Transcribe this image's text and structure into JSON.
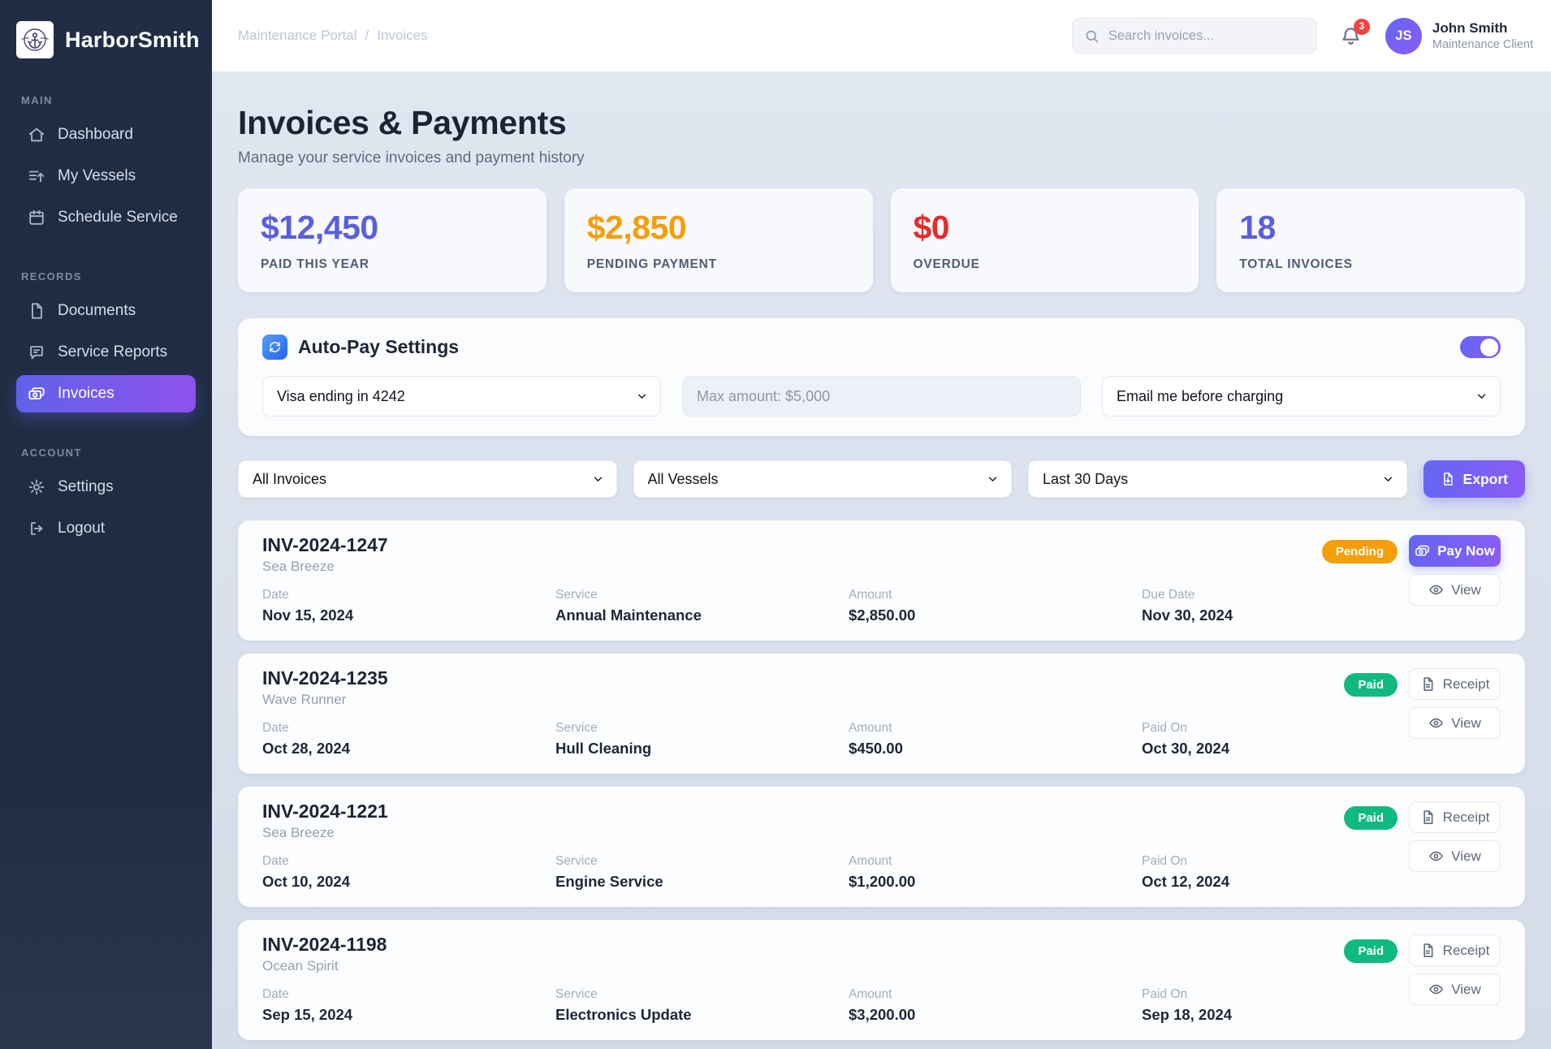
{
  "brand": {
    "name": "HarborSmith"
  },
  "sidebar": {
    "sections": [
      {
        "label": "MAIN",
        "items": [
          {
            "label": "Dashboard",
            "icon": "home"
          },
          {
            "label": "My Vessels",
            "icon": "vessels"
          },
          {
            "label": "Schedule Service",
            "icon": "calendar"
          }
        ]
      },
      {
        "label": "RECORDS",
        "items": [
          {
            "label": "Documents",
            "icon": "document"
          },
          {
            "label": "Service Reports",
            "icon": "report"
          },
          {
            "label": "Invoices",
            "icon": "banknote",
            "active": true
          }
        ]
      },
      {
        "label": "ACCOUNT",
        "items": [
          {
            "label": "Settings",
            "icon": "gear"
          },
          {
            "label": "Logout",
            "icon": "logout"
          }
        ]
      }
    ]
  },
  "header": {
    "breadcrumb": [
      "Maintenance Portal",
      "Invoices"
    ],
    "breadcrumb_separator": "/",
    "search_placeholder": "Search invoices...",
    "notifications_count": "3",
    "user": {
      "initials": "JS",
      "name": "John Smith",
      "role": "Maintenance Client"
    }
  },
  "page": {
    "title": "Invoices & Payments",
    "subtitle": "Manage your service invoices and payment history"
  },
  "stats": [
    {
      "value": "$12,450",
      "label": "PAID THIS YEAR",
      "color": "#5a5fdb"
    },
    {
      "value": "$2,850",
      "label": "PENDING PAYMENT",
      "color": "#f59e0b"
    },
    {
      "value": "$0",
      "label": "OVERDUE",
      "color": "#e32d2d"
    },
    {
      "value": "18",
      "label": "TOTAL INVOICES",
      "color": "#5a5fdb"
    }
  ],
  "autopay": {
    "title": "Auto-Pay Settings",
    "enabled": true,
    "payment_method": "Visa ending in 4242",
    "max_amount_placeholder": "Max amount: $5,000",
    "notify_option": "Email me before charging"
  },
  "filters": {
    "invoice_filter": "All Invoices",
    "vessel_filter": "All Vessels",
    "date_filter": "Last 30 Days",
    "export_label": "Export"
  },
  "invoices": [
    {
      "id": "INV-2024-1247",
      "vessel": "Sea Breeze",
      "status": "Pending",
      "status_color": "#f59e0b",
      "fields": [
        {
          "label": "Date",
          "value": "Nov 15, 2024"
        },
        {
          "label": "Service",
          "value": "Annual Maintenance"
        },
        {
          "label": "Amount",
          "value": "$2,850.00"
        },
        {
          "label": "Due Date",
          "value": "Nov 30, 2024"
        }
      ],
      "actions": [
        {
          "label": "Pay Now",
          "icon": "banknote",
          "variant": "primary"
        },
        {
          "label": "View",
          "icon": "eye",
          "variant": "outline"
        }
      ]
    },
    {
      "id": "INV-2024-1235",
      "vessel": "Wave Runner",
      "status": "Paid",
      "status_color": "#10b981",
      "fields": [
        {
          "label": "Date",
          "value": "Oct 28, 2024"
        },
        {
          "label": "Service",
          "value": "Hull Cleaning"
        },
        {
          "label": "Amount",
          "value": "$450.00"
        },
        {
          "label": "Paid On",
          "value": "Oct 30, 2024"
        }
      ],
      "actions": [
        {
          "label": "Receipt",
          "icon": "receipt",
          "variant": "outline"
        },
        {
          "label": "View",
          "icon": "eye",
          "variant": "outline"
        }
      ]
    },
    {
      "id": "INV-2024-1221",
      "vessel": "Sea Breeze",
      "status": "Paid",
      "status_color": "#10b981",
      "fields": [
        {
          "label": "Date",
          "value": "Oct 10, 2024"
        },
        {
          "label": "Service",
          "value": "Engine Service"
        },
        {
          "label": "Amount",
          "value": "$1,200.00"
        },
        {
          "label": "Paid On",
          "value": "Oct 12, 2024"
        }
      ],
      "actions": [
        {
          "label": "Receipt",
          "icon": "receipt",
          "variant": "outline"
        },
        {
          "label": "View",
          "icon": "eye",
          "variant": "outline"
        }
      ]
    },
    {
      "id": "INV-2024-1198",
      "vessel": "Ocean Spirit",
      "status": "Paid",
      "status_color": "#10b981",
      "fields": [
        {
          "label": "Date",
          "value": "Sep 15, 2024"
        },
        {
          "label": "Service",
          "value": "Electronics Update"
        },
        {
          "label": "Amount",
          "value": "$3,200.00"
        },
        {
          "label": "Paid On",
          "value": "Sep 18, 2024"
        }
      ],
      "actions": [
        {
          "label": "Receipt",
          "icon": "receipt",
          "variant": "outline"
        },
        {
          "label": "View",
          "icon": "eye",
          "variant": "outline"
        }
      ]
    }
  ]
}
